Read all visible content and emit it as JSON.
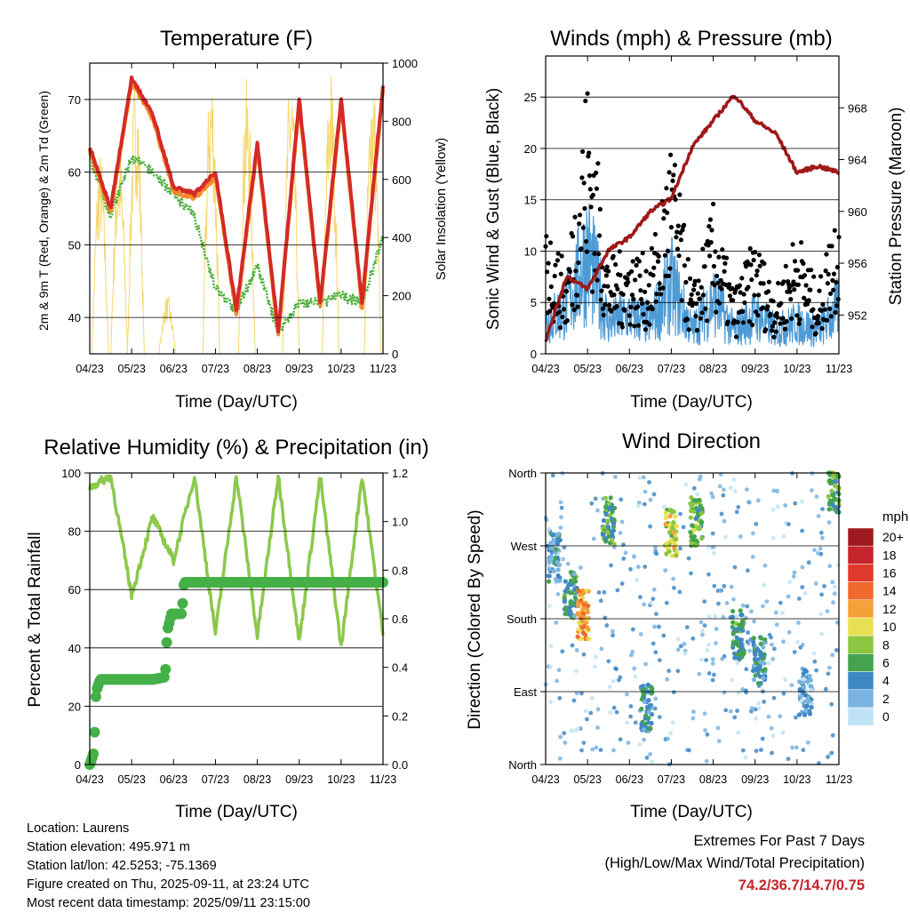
{
  "x_ticks": [
    "04/23",
    "05/23",
    "06/23",
    "07/23",
    "08/23",
    "09/23",
    "10/23",
    "11/23"
  ],
  "panels": {
    "temperature": {
      "title": "Temperature (F)",
      "xlabel": "Time (Day/UTC)",
      "ylabel_left": "2m & 9m T (Red, Orange) & 2m Td (Green)",
      "ylabel_right": "Solar Insolation (Yellow)",
      "left_ticks": [
        "40",
        "50",
        "60",
        "70"
      ],
      "right_ticks": [
        "0",
        "200",
        "400",
        "600",
        "800",
        "1000"
      ]
    },
    "winds": {
      "title": "Winds (mph) & Pressure (mb)",
      "xlabel": "Time (Day/UTC)",
      "ylabel_left": "Sonic Wind & Gust (Blue, Black)",
      "ylabel_right": "Station Pressure (Maroon)",
      "left_ticks": [
        "0",
        "5",
        "10",
        "15",
        "20",
        "25"
      ],
      "right_ticks": [
        "952",
        "956",
        "960",
        "964",
        "968"
      ]
    },
    "humidity": {
      "title": "Relative Humidity (%) & Precipitation (in)",
      "xlabel": "Time (Day/UTC)",
      "ylabel_left": "Percent & Total Rainfall",
      "left_ticks": [
        "0",
        "20",
        "40",
        "60",
        "80",
        "100"
      ],
      "right_ticks": [
        "0.0",
        "0.2",
        "0.4",
        "0.6",
        "0.8",
        "1.0",
        "1.2"
      ]
    },
    "direction": {
      "title": "Wind Direction",
      "xlabel": "Time (Day/UTC)",
      "ylabel_left": "Direction (Colored By Speed)",
      "left_ticks": [
        "North",
        "East",
        "South",
        "West",
        "North"
      ],
      "legend_title": "mph",
      "legend_labels": [
        "20+",
        "18",
        "16",
        "14",
        "12",
        "10",
        "8",
        "6",
        "4",
        "2",
        "0"
      ],
      "legend_colors": [
        "#9e1a1f",
        "#c4242c",
        "#e0392b",
        "#ef6a2c",
        "#f5a13a",
        "#e8df52",
        "#8cc641",
        "#45a24f",
        "#3f88c5",
        "#7ab3e0",
        "#bfe3f5"
      ]
    }
  },
  "info": {
    "location": "Location: Laurens",
    "elevation": "Station elevation: 495.971 m",
    "latlon": "Station lat/lon: 42.5253; -75.1369",
    "created": "Figure created on Thu, 2025-09-11, at 23:24 UTC",
    "recent": "Most recent data timestamp: 2025/09/11 23:15:00"
  },
  "extremes": {
    "line1": "Extremes For Past 7 Days",
    "line2": "(High/Low/Max Wind/Total Precipitation)",
    "value": "74.2/36.7/14.7/0.75"
  },
  "colors": {
    "temp_2m": "#d42a27",
    "temp_9m": "#f28c28",
    "dewpoint": "#4caf3f",
    "solar": "#f5d76e",
    "wind": "#4d9bd6",
    "gust": "#000000",
    "pressure": "#a01818",
    "rh": "#8cc84b",
    "precip": "#45b048"
  },
  "chart_data": [
    {
      "type": "line",
      "title": "Temperature (F)",
      "xlabel": "Time (Day/UTC)",
      "ylabel": "2m & 9m T (Red, Orange) & 2m Td (Green)",
      "y2label": "Solar Insolation (Yellow)",
      "x": [
        0,
        0.5,
        1,
        1.5,
        2,
        2.5,
        3,
        3.5,
        4,
        4.5,
        5,
        5.5,
        6,
        6.5,
        7
      ],
      "ylim": [
        35,
        75
      ],
      "y2lim": [
        0,
        1000
      ],
      "series": [
        {
          "name": "2m T",
          "values": [
            63.5,
            55,
            73,
            68,
            58,
            57,
            60,
            41,
            64,
            38,
            70,
            42,
            70,
            42,
            72
          ]
        },
        {
          "name": "2m Td",
          "values": [
            62,
            54,
            62,
            60,
            57,
            54,
            44,
            41,
            47,
            38,
            42,
            42,
            43,
            42,
            51
          ]
        }
      ],
      "solar_peaks": [
        700,
        730,
        980,
        200,
        1000,
        950,
        1000,
        1000,
        1000
      ]
    },
    {
      "type": "line",
      "title": "Winds (mph) & Pressure (mb)",
      "xlabel": "Time (Day/UTC)",
      "ylabel": "Sonic Wind & Gust (Blue, Black)",
      "y2label": "Station Pressure (Maroon)",
      "x": [
        0,
        0.5,
        1,
        1.5,
        2,
        2.5,
        3,
        3.5,
        4,
        4.5,
        5,
        5.5,
        6,
        6.5,
        7
      ],
      "ylim": [
        0,
        29
      ],
      "y2lim": [
        949,
        972
      ],
      "series": [
        {
          "name": "Sonic Wind",
          "values": [
            4,
            6,
            13,
            4,
            5,
            4,
            9,
            3,
            7,
            3,
            5,
            3,
            4,
            3,
            6
          ]
        },
        {
          "name": "Gust",
          "values": [
            13,
            8,
            27,
            9,
            10,
            9,
            21,
            6,
            14,
            6,
            11,
            6,
            12,
            6,
            16
          ]
        },
        {
          "name": "Station Pressure",
          "values": [
            950,
            955,
            954,
            957,
            958,
            960,
            961,
            965,
            967,
            969,
            967,
            966,
            963,
            963.5,
            963
          ]
        }
      ]
    },
    {
      "type": "line",
      "title": "Relative Humidity (%) & Precipitation (in)",
      "xlabel": "Time (Day/UTC)",
      "ylabel": "Percent & Total Rainfall",
      "x": [
        0,
        0.5,
        1,
        1.5,
        2,
        2.5,
        3,
        3.5,
        4,
        4.5,
        5,
        5.5,
        6,
        6.5,
        7
      ],
      "ylim": [
        0,
        100
      ],
      "y2lim": [
        0,
        1.2
      ],
      "series": [
        {
          "name": "Relative Humidity",
          "values": [
            95,
            99,
            58,
            85,
            70,
            99,
            45,
            99,
            44,
            99,
            42,
            99,
            40,
            99,
            45
          ]
        },
        {
          "name": "Total Precipitation",
          "values": [
            0,
            0.35,
            0.35,
            0.35,
            0.35,
            0.75,
            0.75,
            0.75,
            0.75,
            0.75,
            0.75,
            0.75,
            0.75,
            0.75,
            0.75
          ]
        }
      ]
    },
    {
      "type": "scatter",
      "title": "Wind Direction",
      "xlabel": "Time (Day/UTC)",
      "ylabel": "Direction (Colored By Speed)",
      "y_categories": [
        "North",
        "East",
        "South",
        "West",
        "North"
      ],
      "colorbar": {
        "label": "mph",
        "levels": [
          "0",
          "2",
          "4",
          "6",
          "8",
          "10",
          "12",
          "14",
          "16",
          "18",
          "20+"
        ]
      },
      "clusters": [
        {
          "day": 0.2,
          "dir": 255,
          "speed": 3
        },
        {
          "day": 0.6,
          "dir": 210,
          "speed": 5
        },
        {
          "day": 0.9,
          "dir": 185,
          "speed": 12
        },
        {
          "day": 1.5,
          "dir": 300,
          "speed": 6
        },
        {
          "day": 2.4,
          "dir": 70,
          "speed": 4
        },
        {
          "day": 3.0,
          "dir": 285,
          "speed": 9
        },
        {
          "day": 3.6,
          "dir": 300,
          "speed": 7
        },
        {
          "day": 4.6,
          "dir": 160,
          "speed": 5
        },
        {
          "day": 5.1,
          "dir": 130,
          "speed": 4
        },
        {
          "day": 6.2,
          "dir": 90,
          "speed": 3
        },
        {
          "day": 6.9,
          "dir": 340,
          "speed": 6
        }
      ]
    }
  ]
}
